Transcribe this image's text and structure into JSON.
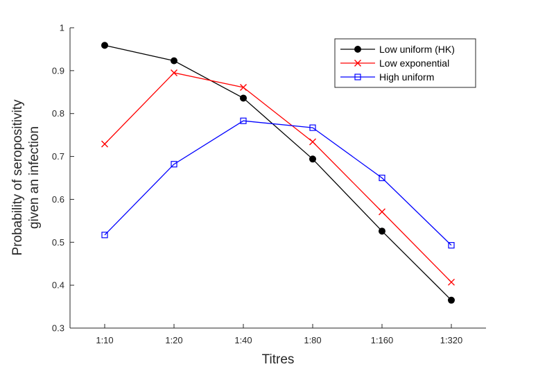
{
  "chart_data": {
    "type": "line",
    "categories": [
      "1:10",
      "1:20",
      "1:40",
      "1:80",
      "1:160",
      "1:320"
    ],
    "xlabel": "Titres",
    "ylabel_lines": [
      "Probability of seropositivity",
      "given an infection"
    ],
    "ylim": [
      0.3,
      1.0
    ],
    "yticks": [
      "0.3",
      "0.4",
      "0.5",
      "0.6",
      "0.7",
      "0.8",
      "0.9",
      "1"
    ],
    "grid": false,
    "legend_position": "top-right",
    "series": [
      {
        "name": "Low uniform (HK)",
        "color": "#000000",
        "marker": "filled-circle",
        "values": [
          0.959,
          0.923,
          0.836,
          0.694,
          0.526,
          0.365
        ]
      },
      {
        "name": "Low exponential",
        "color": "#ff0000",
        "marker": "x",
        "values": [
          0.729,
          0.895,
          0.861,
          0.734,
          0.571,
          0.407
        ]
      },
      {
        "name": "High uniform",
        "color": "#0000ff",
        "marker": "open-square",
        "values": [
          0.517,
          0.682,
          0.783,
          0.767,
          0.65,
          0.493
        ]
      }
    ]
  }
}
